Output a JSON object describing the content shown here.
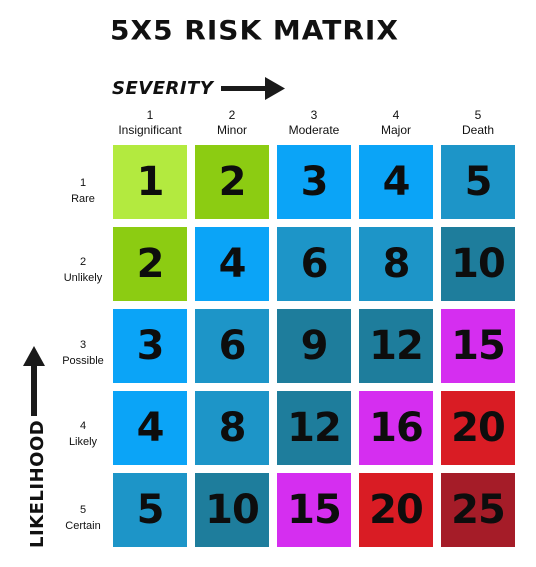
{
  "title": "5X5 RISK MATRIX",
  "severity_label": "SEVERITY",
  "likelihood_label": "LIKELIHOOD",
  "severity_levels": [
    {
      "num": "1",
      "name": "Insignificant"
    },
    {
      "num": "2",
      "name": "Minor"
    },
    {
      "num": "3",
      "name": "Moderate"
    },
    {
      "num": "4",
      "name": "Major"
    },
    {
      "num": "5",
      "name": "Death"
    }
  ],
  "likelihood_levels": [
    {
      "num": "1",
      "name": "Rare"
    },
    {
      "num": "2",
      "name": "Unlikely"
    },
    {
      "num": "3",
      "name": "Possible"
    },
    {
      "num": "4",
      "name": "Likely"
    },
    {
      "num": "5",
      "name": "Certain"
    }
  ],
  "matrix": [
    [
      "1",
      "2",
      "3",
      "4",
      "5"
    ],
    [
      "2",
      "4",
      "6",
      "8",
      "10"
    ],
    [
      "3",
      "6",
      "9",
      "12",
      "15"
    ],
    [
      "4",
      "8",
      "12",
      "16",
      "20"
    ],
    [
      "5",
      "10",
      "15",
      "20",
      "25"
    ]
  ],
  "colors": {
    "1": "#b3ea3f",
    "2": "#8ccc12",
    "3": "#0ba4f7",
    "4": "#0ba4f7",
    "5": "#1d95c8",
    "6": "#1d95c8",
    "8": "#1d95c8",
    "9": "#1e7d9c",
    "10": "#1e7d9c",
    "12": "#1e7d9c",
    "15": "#d52ef0",
    "16": "#d52ef0",
    "20": "#d91c24",
    "25": "#a51c28"
  }
}
